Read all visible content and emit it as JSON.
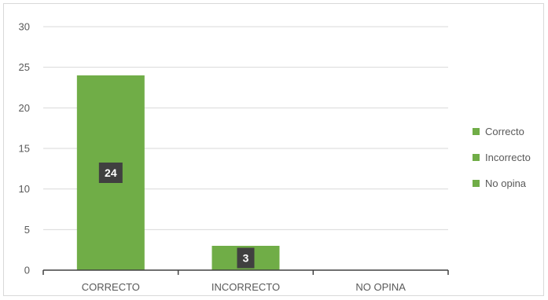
{
  "chart_data": {
    "type": "bar",
    "categories": [
      "CORRECTO",
      "INCORRECTO",
      "NO OPINA"
    ],
    "values": [
      24,
      3,
      0
    ],
    "data_labels": [
      "24",
      "3",
      ""
    ],
    "ylim": [
      0,
      30
    ],
    "yticks": [
      "0",
      "5",
      "10",
      "15",
      "20",
      "25",
      "30"
    ],
    "grid": true,
    "legend_position": "right",
    "legend": [
      "Correcto",
      "Incorrecto",
      "No opina"
    ],
    "colors": {
      "bar": "#70ad47",
      "label_box": "#404040",
      "grid": "#d9d9d9",
      "axis": "#404040"
    }
  }
}
